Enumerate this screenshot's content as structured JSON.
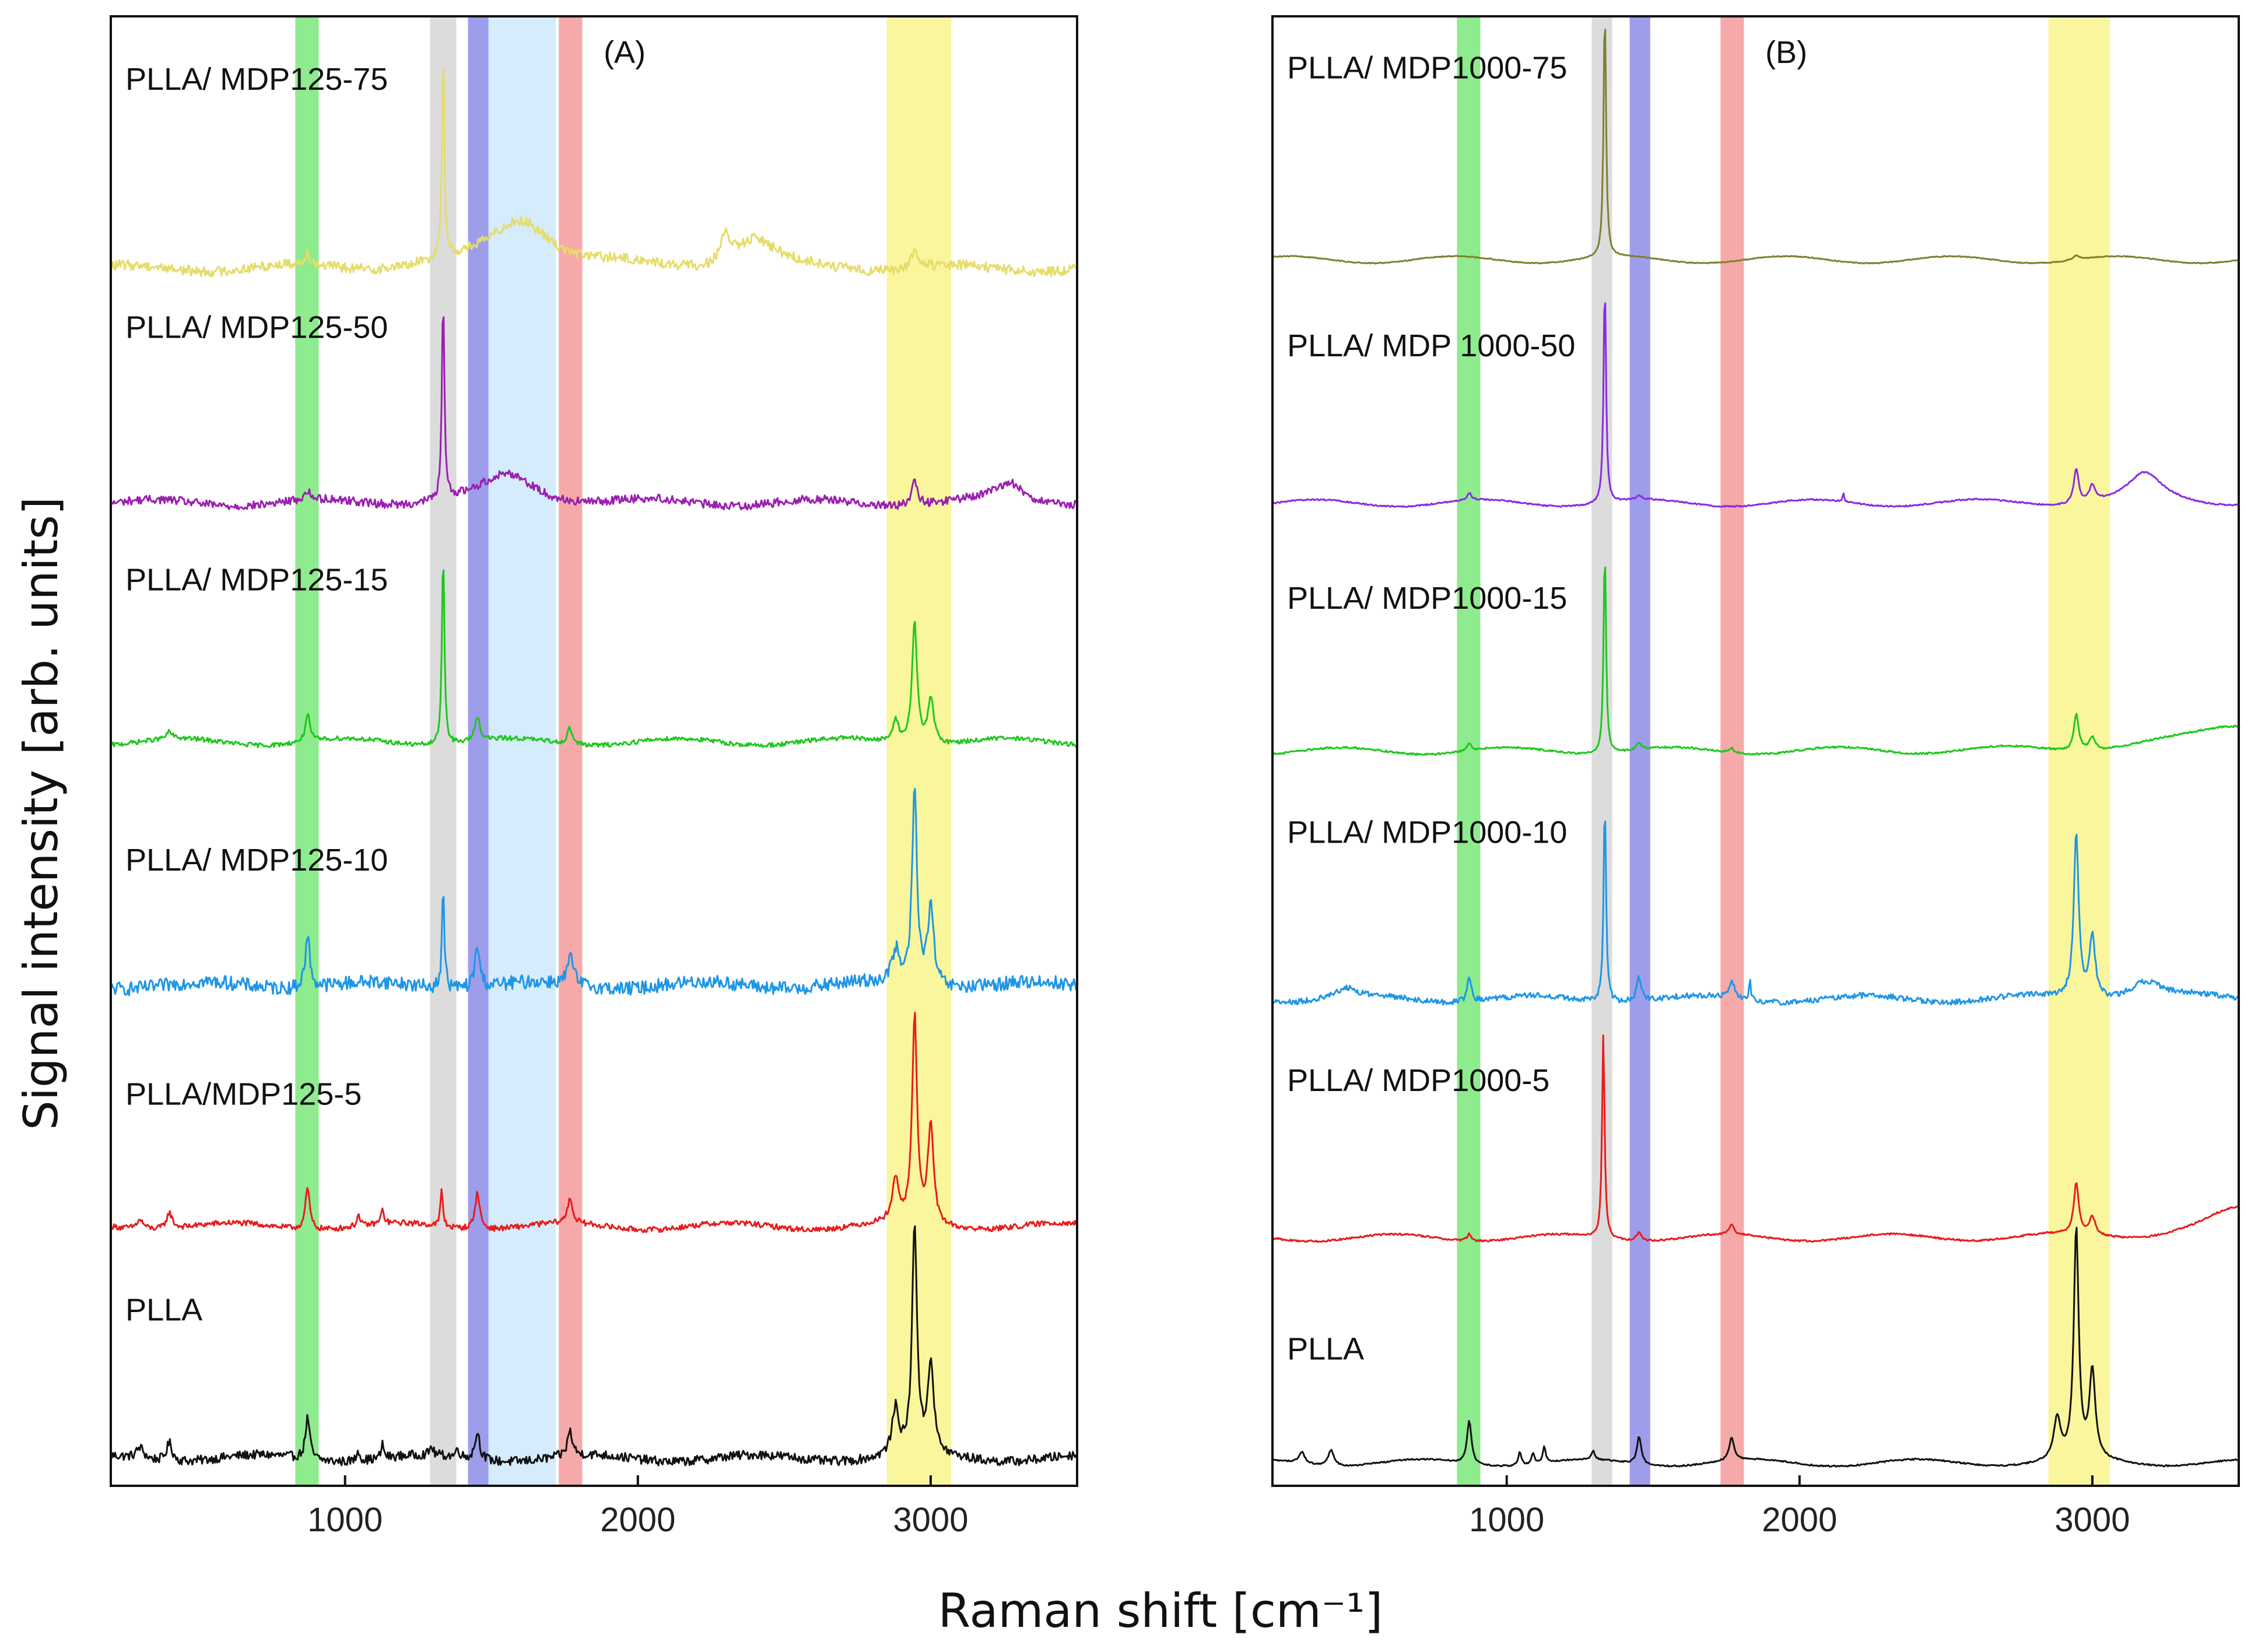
{
  "figure": {
    "ylabel": "Signal intensity [arb. units]",
    "xlabel": "Raman shift [cm⁻¹]"
  },
  "colors": {
    "yellow_trace": "#e6dc6a",
    "purple_trace": "#9b1fb0",
    "green_trace": "#1ec81e",
    "blue_trace": "#1e96e6",
    "red_trace": "#e81c1c",
    "black_trace": "#111111",
    "olive_trace": "#808030",
    "violet_trace": "#8a2be2",
    "band_green": "#7ae87a",
    "band_gray": "#d6d6d6",
    "band_blue": "#8c8ce8",
    "band_lightblue": "#cce9fb",
    "band_red": "#f59a9a",
    "band_yellow": "#f8f58c"
  },
  "chart_data": [
    {
      "type": "line",
      "panel_label": "(A)",
      "title": "",
      "xlabel": "Raman shift [cm⁻¹]",
      "ylabel": "Signal intensity [arb. units]",
      "xlim": [
        200,
        3500
      ],
      "ylim": [
        0,
        6.4
      ],
      "xticks": [
        1000,
        2000,
        3000
      ],
      "grid": false,
      "bands": [
        {
          "from": 830,
          "to": 910,
          "color": "band_green"
        },
        {
          "from": 1290,
          "to": 1380,
          "color": "band_gray"
        },
        {
          "from": 1420,
          "to": 1490,
          "color": "band_blue"
        },
        {
          "from": 1490,
          "to": 1720,
          "color": "band_lightblue"
        },
        {
          "from": 1730,
          "to": 1810,
          "color": "band_red"
        },
        {
          "from": 2850,
          "to": 3070,
          "color": "band_yellow"
        }
      ],
      "series": [
        {
          "name": "PLLA",
          "color": "black_trace",
          "offset": 0.12,
          "noise": 0.02,
          "peaks": [
            [
              872,
              0.18,
              9
            ],
            [
              1045,
              0.05,
              6
            ],
            [
              1128,
              0.06,
              6
            ],
            [
              1295,
              0.04,
              6
            ],
            [
              1385,
              0.04,
              6
            ],
            [
              1452,
              0.12,
              10
            ],
            [
              1768,
              0.11,
              10
            ],
            [
              2880,
              0.2,
              14
            ],
            [
              2945,
              1.0,
              10
            ],
            [
              3000,
              0.4,
              12
            ],
            [
              300,
              0.05,
              15
            ],
            [
              400,
              0.08,
              12
            ]
          ],
          "label_x": 250,
          "label_y": 0.72
        },
        {
          "name": "PLLA/MDP125-5",
          "color": "red_trace",
          "offset": 1.13,
          "noise": 0.012,
          "peaks": [
            [
              872,
              0.18,
              9
            ],
            [
              1045,
              0.05,
              6
            ],
            [
              1128,
              0.06,
              6
            ],
            [
              1330,
              0.16,
              5
            ],
            [
              1452,
              0.16,
              10
            ],
            [
              1768,
              0.11,
              10
            ],
            [
              2880,
              0.18,
              14
            ],
            [
              2945,
              0.9,
              10
            ],
            [
              3000,
              0.42,
              12
            ],
            [
              400,
              0.07,
              12
            ],
            [
              300,
              0.04,
              15
            ]
          ],
          "label_x": 250,
          "label_y": 1.66
        },
        {
          "name": "PLLA/ MDP125-10",
          "color": "blue_trace",
          "offset": 2.18,
          "noise": 0.03,
          "peaks": [
            [
              872,
              0.22,
              10
            ],
            [
              1335,
              0.42,
              5
            ],
            [
              1452,
              0.18,
              10
            ],
            [
              1770,
              0.12,
              12
            ],
            [
              2880,
              0.14,
              14
            ],
            [
              2945,
              0.85,
              10
            ],
            [
              3000,
              0.35,
              12
            ]
          ],
          "label_x": 250,
          "label_y": 2.68
        },
        {
          "name": "PLLA/ MDP125-15",
          "color": "green_trace",
          "offset": 3.24,
          "noise": 0.01,
          "peaks": [
            [
              872,
              0.12,
              9
            ],
            [
              1335,
              0.85,
              5
            ],
            [
              1452,
              0.11,
              10
            ],
            [
              1768,
              0.07,
              10
            ],
            [
              2880,
              0.1,
              12
            ],
            [
              2945,
              0.54,
              10
            ],
            [
              3000,
              0.2,
              12
            ],
            [
              400,
              0.03,
              12
            ]
          ],
          "label_x": 250,
          "label_y": 3.9
        },
        {
          "name": "PLLA/ MDP125-50",
          "color": "purple_trace",
          "offset": 4.28,
          "noise": 0.018,
          "peaks": [
            [
              872,
              0.04,
              9
            ],
            [
              1335,
              0.87,
              5
            ],
            [
              1560,
              0.12,
              110
            ],
            [
              2945,
              0.1,
              12
            ],
            [
              3270,
              0.08,
              60
            ]
          ],
          "label_x": 250,
          "label_y": 5.0
        },
        {
          "name": "PLLA/ MDP125-75",
          "color": "yellow_trace",
          "offset": 5.3,
          "noise": 0.022,
          "peaks": [
            [
              872,
              0.05,
              12
            ],
            [
              1335,
              0.88,
              5
            ],
            [
              1600,
              0.22,
              130
            ],
            [
              2300,
              0.12,
              20
            ],
            [
              2400,
              0.12,
              80
            ],
            [
              2945,
              0.08,
              12
            ]
          ],
          "label_x": 250,
          "label_y": 6.08
        }
      ]
    },
    {
      "type": "line",
      "panel_label": "(B)",
      "title": "",
      "xlabel": "Raman shift [cm⁻¹]",
      "ylabel": "",
      "xlim": [
        200,
        3500
      ],
      "ylim": [
        0,
        6.4
      ],
      "xticks": [
        1000,
        2000,
        3000
      ],
      "grid": false,
      "bands": [
        {
          "from": 830,
          "to": 910,
          "color": "band_green"
        },
        {
          "from": 1290,
          "to": 1360,
          "color": "band_gray"
        },
        {
          "from": 1420,
          "to": 1490,
          "color": "band_blue"
        },
        {
          "from": 1730,
          "to": 1810,
          "color": "band_red"
        },
        {
          "from": 2850,
          "to": 3060,
          "color": "band_yellow"
        }
      ],
      "series": [
        {
          "name": "PLLA",
          "color": "black_trace",
          "offset": 0.1,
          "noise": 0.003,
          "peaks": [
            [
              872,
              0.19,
              9
            ],
            [
              1045,
              0.06,
              6
            ],
            [
              1090,
              0.05,
              6
            ],
            [
              1128,
              0.07,
              6
            ],
            [
              1295,
              0.04,
              6
            ],
            [
              1452,
              0.12,
              9
            ],
            [
              1768,
              0.1,
              10
            ],
            [
              2880,
              0.18,
              14
            ],
            [
              2945,
              1.0,
              10
            ],
            [
              3000,
              0.38,
              12
            ],
            [
              300,
              0.05,
              12
            ],
            [
              400,
              0.07,
              12
            ]
          ],
          "label_x": 250,
          "label_y": 0.55
        },
        {
          "name": "PLLA/ MDP1000-5",
          "color": "red_trace",
          "offset": 1.08,
          "noise": 0.004,
          "peaks": [
            [
              872,
              0.03,
              9
            ],
            [
              1330,
              0.9,
              5
            ],
            [
              1452,
              0.04,
              10
            ],
            [
              1768,
              0.04,
              10
            ],
            [
              2945,
              0.22,
              10
            ],
            [
              3000,
              0.08,
              12
            ],
            [
              3500,
              0.12,
              140
            ]
          ],
          "label_x": 250,
          "label_y": 1.72
        },
        {
          "name": "PLLA/ MDP1000-10",
          "color": "blue_trace",
          "offset": 2.12,
          "noise": 0.012,
          "peaks": [
            [
              872,
              0.1,
              9
            ],
            [
              1335,
              0.88,
              5
            ],
            [
              1452,
              0.1,
              10
            ],
            [
              1768,
              0.08,
              10
            ],
            [
              1830,
              0.1,
              3
            ],
            [
              2945,
              0.72,
              10
            ],
            [
              3000,
              0.27,
              12
            ],
            [
              3180,
              0.08,
              70
            ],
            [
              450,
              0.04,
              40
            ]
          ],
          "label_x": 250,
          "label_y": 2.8
        },
        {
          "name": "PLLA/ MDP1000-15",
          "color": "green_trace",
          "offset": 3.2,
          "noise": 0.004,
          "peaks": [
            [
              872,
              0.03,
              9
            ],
            [
              1335,
              0.9,
              5
            ],
            [
              1452,
              0.03,
              10
            ],
            [
              1768,
              0.02,
              10
            ],
            [
              2945,
              0.16,
              10
            ],
            [
              3000,
              0.06,
              12
            ],
            [
              3500,
              0.12,
              200
            ]
          ],
          "label_x": 250,
          "label_y": 3.82
        },
        {
          "name": "PLLA/ MDP 1000-50",
          "color": "violet_trace",
          "offset": 4.28,
          "noise": 0.003,
          "peaks": [
            [
              872,
              0.03,
              9
            ],
            [
              1335,
              0.97,
              5
            ],
            [
              1452,
              0.02,
              10
            ],
            [
              2150,
              0.04,
              3
            ],
            [
              2945,
              0.15,
              10
            ],
            [
              3000,
              0.07,
              12
            ],
            [
              3180,
              0.12,
              70
            ]
          ],
          "label_x": 250,
          "label_y": 4.92
        },
        {
          "name": "PLLA/ MDP1000-75",
          "color": "olive_trace",
          "offset": 5.34,
          "noise": 0.002,
          "peaks": [
            [
              1335,
              1.1,
              5
            ],
            [
              2945,
              0.02,
              12
            ]
          ],
          "label_x": 250,
          "label_y": 6.13
        }
      ]
    }
  ]
}
